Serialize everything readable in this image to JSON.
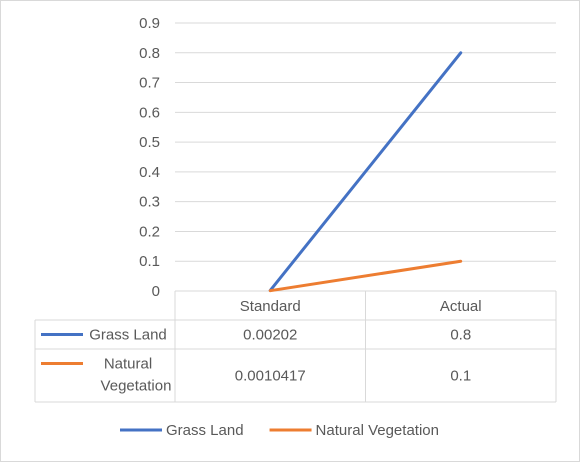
{
  "chart_data": {
    "type": "line",
    "categories": [
      "Standard",
      "Actual"
    ],
    "series": [
      {
        "name": "Grass Land",
        "values": [
          0.00202,
          0.8
        ],
        "table_values": [
          "0.00202",
          "0.8"
        ],
        "color": "#4472c4"
      },
      {
        "name": "Natural Vegetation",
        "values": [
          0.0010417,
          0.1
        ],
        "table_values": [
          "0.0010417",
          "0.1"
        ],
        "color": "#ed7d31"
      }
    ],
    "ylim": [
      0,
      0.9
    ],
    "yticks": [
      "0",
      "0.1",
      "0.2",
      "0.3",
      "0.4",
      "0.5",
      "0.6",
      "0.7",
      "0.8",
      "0.9"
    ],
    "grid": true,
    "data_table": true,
    "legend": "bottom"
  }
}
